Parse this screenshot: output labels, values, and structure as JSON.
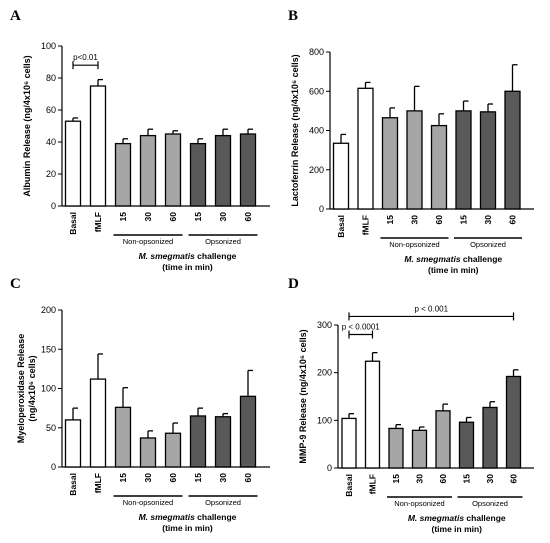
{
  "colors": {
    "basal": "#ffffff",
    "fmlf": "#ffffff",
    "non_opsonized": "#a6a6a6",
    "opsonized": "#595959",
    "stroke": "#000000"
  },
  "chart_data": [
    {
      "type": "bar",
      "panel": "A",
      "ylabel": "Albumin Release (ng/4x10⁶ cells)",
      "ylim": [
        0,
        100
      ],
      "yticks": [
        "0",
        "20",
        "40",
        "60",
        "80",
        "100"
      ],
      "categories": [
        "Basal",
        "fMLF",
        "15",
        "30",
        "60",
        "15",
        "30",
        "60"
      ],
      "groups": [
        "Non-opsonized",
        "Opsonized"
      ],
      "xlabel_line1": "M. smegmatis challenge",
      "xlabel_line2": "(time in min)",
      "values": [
        53,
        75,
        39,
        44,
        45,
        39,
        44,
        45
      ],
      "errors": [
        2,
        4,
        3,
        4,
        2,
        3,
        4,
        3
      ],
      "annotations": [
        {
          "text": "p<0.01",
          "from": 0,
          "to": 1,
          "y": 88
        }
      ]
    },
    {
      "type": "bar",
      "panel": "B",
      "ylabel": "Lactoferrin Release (ng/4x10⁶ cells)",
      "ylim": [
        0,
        800
      ],
      "yticks": [
        "0",
        "200",
        "400",
        "600",
        "800"
      ],
      "categories": [
        "Basal",
        "fMLF",
        "15",
        "30",
        "60",
        "15",
        "30",
        "60"
      ],
      "groups": [
        "Non-opsonized",
        "Opsonized"
      ],
      "xlabel_line1": "M. smegmatis challenge",
      "xlabel_line2": "(time in min)",
      "values": [
        335,
        615,
        465,
        500,
        425,
        500,
        495,
        600
      ],
      "errors": [
        45,
        30,
        50,
        125,
        60,
        50,
        40,
        135
      ],
      "annotations": []
    },
    {
      "type": "bar",
      "panel": "C",
      "ylabel": "Myeloperoxidase Release (ng/4x10⁶ cells)",
      "ylabel_line1": "Myeloperoxidase Release",
      "ylabel_line2": "(ng/4x10⁶ cells)",
      "ylim": [
        0,
        200
      ],
      "yticks": [
        "0",
        "50",
        "100",
        "150",
        "200"
      ],
      "categories": [
        "Basal",
        "fMLF",
        "15",
        "30",
        "60",
        "15",
        "30",
        "60"
      ],
      "groups": [
        "Non-opsonized",
        "Opsonized"
      ],
      "xlabel_line1": "M. smegmatis challenge",
      "xlabel_line2": "(time in min)",
      "values": [
        60,
        112,
        76,
        37,
        43,
        65,
        64,
        90
      ],
      "errors": [
        15,
        32,
        25,
        9,
        13,
        10,
        4,
        33
      ],
      "annotations": []
    },
    {
      "type": "bar",
      "panel": "D",
      "ylabel": "MMP-9 Release (ng/4x10⁶ cells)",
      "ylim": [
        0,
        300
      ],
      "yticks": [
        "0",
        "100",
        "200",
        "300"
      ],
      "categories": [
        "Basal",
        "fMLF",
        "15",
        "30",
        "60",
        "15",
        "30",
        "60"
      ],
      "groups": [
        "Non-opsonized",
        "Opsonized"
      ],
      "xlabel_line1": "M. smegmatis challenge",
      "xlabel_line2": "(time in min)",
      "values": [
        104,
        224,
        83,
        79,
        120,
        96,
        127,
        192
      ],
      "errors": [
        10,
        18,
        8,
        7,
        14,
        10,
        12,
        14
      ],
      "annotations": [
        {
          "text": "p < 0.0001",
          "from": 0,
          "to": 1,
          "y": 280
        },
        {
          "text": "p < 0.001",
          "from": 0,
          "to": 7,
          "y": 318
        }
      ]
    }
  ]
}
